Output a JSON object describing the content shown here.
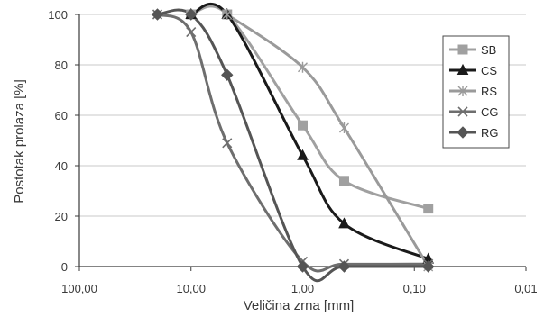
{
  "chart_data": {
    "type": "line",
    "xlabel": "Veličina zrna [mm]",
    "ylabel": "Postotak prolaza [%]",
    "xscale": "log",
    "xreversed": true,
    "xlim": [
      100,
      0.01
    ],
    "ylim": [
      0,
      100
    ],
    "xticks": [
      100,
      10,
      1,
      0.1,
      0.01
    ],
    "xtick_labels": [
      "100,00",
      "10,00",
      "1,00",
      "0,10",
      "0,01"
    ],
    "yticks": [
      0,
      20,
      40,
      60,
      80,
      100
    ],
    "ytick_labels": [
      "0",
      "20",
      "40",
      "60",
      "80",
      "100"
    ],
    "grid": "horizontal",
    "legend": "right",
    "series": [
      {
        "name": "SB",
        "color": "#a0a0a0",
        "marker": "square",
        "x": [
          10,
          4.75,
          1,
          0.425,
          0.075
        ],
        "y": [
          100,
          100,
          56,
          34,
          23
        ]
      },
      {
        "name": "CS",
        "color": "#1a1a1a",
        "marker": "triangle",
        "x": [
          10,
          4.75,
          1,
          0.425,
          0.075
        ],
        "y": [
          100,
          100,
          44,
          17,
          3
        ]
      },
      {
        "name": "RS",
        "color": "#9a9a9a",
        "marker": "asterisk",
        "x": [
          4.75,
          1,
          0.425,
          0.075
        ],
        "y": [
          100,
          79,
          55,
          0
        ]
      },
      {
        "name": "CG",
        "color": "#6e6e6e",
        "marker": "x",
        "x": [
          20,
          10,
          4.75,
          1,
          0.425,
          0.075
        ],
        "y": [
          100,
          93,
          49,
          2,
          1,
          1
        ]
      },
      {
        "name": "RG",
        "color": "#555555",
        "marker": "diamond",
        "x": [
          20,
          10,
          4.75,
          1,
          0.425,
          0.075
        ],
        "y": [
          100,
          100,
          76,
          0,
          0,
          0
        ]
      }
    ]
  }
}
